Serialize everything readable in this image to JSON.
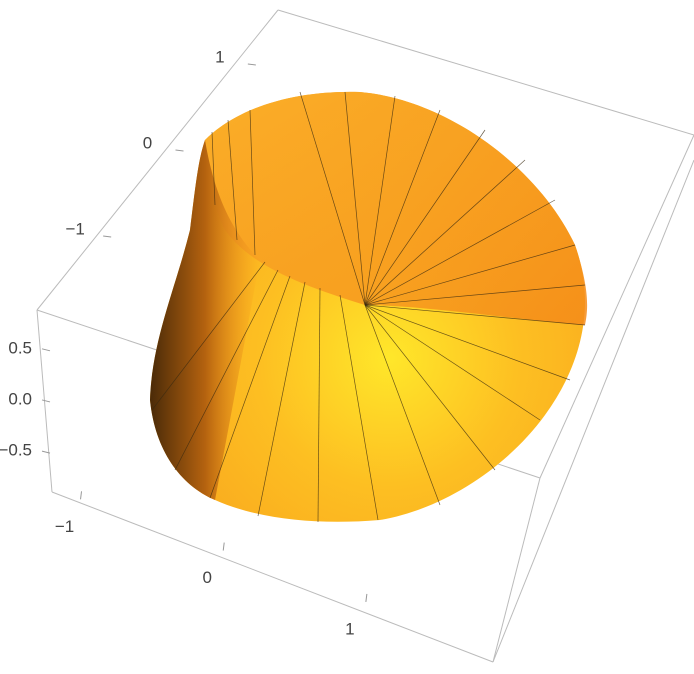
{
  "chart_data": {
    "type": "surface3d",
    "xlim": [
      -1.2,
      1.8
    ],
    "xticks": [
      {
        "value": -1,
        "label": "−1"
      },
      0,
      1
    ],
    "ylim": [
      -1.5,
      1.5
    ],
    "yticks": [
      {
        "value": -1,
        "label": "−1"
      },
      0,
      1
    ],
    "zlim": [
      -0.9,
      0.85
    ],
    "zticks": [
      {
        "value": -0.5,
        "label": "−0.5"
      },
      {
        "value": 0,
        "label": "0.0"
      },
      0.5
    ],
    "color": "#f7a21c"
  }
}
